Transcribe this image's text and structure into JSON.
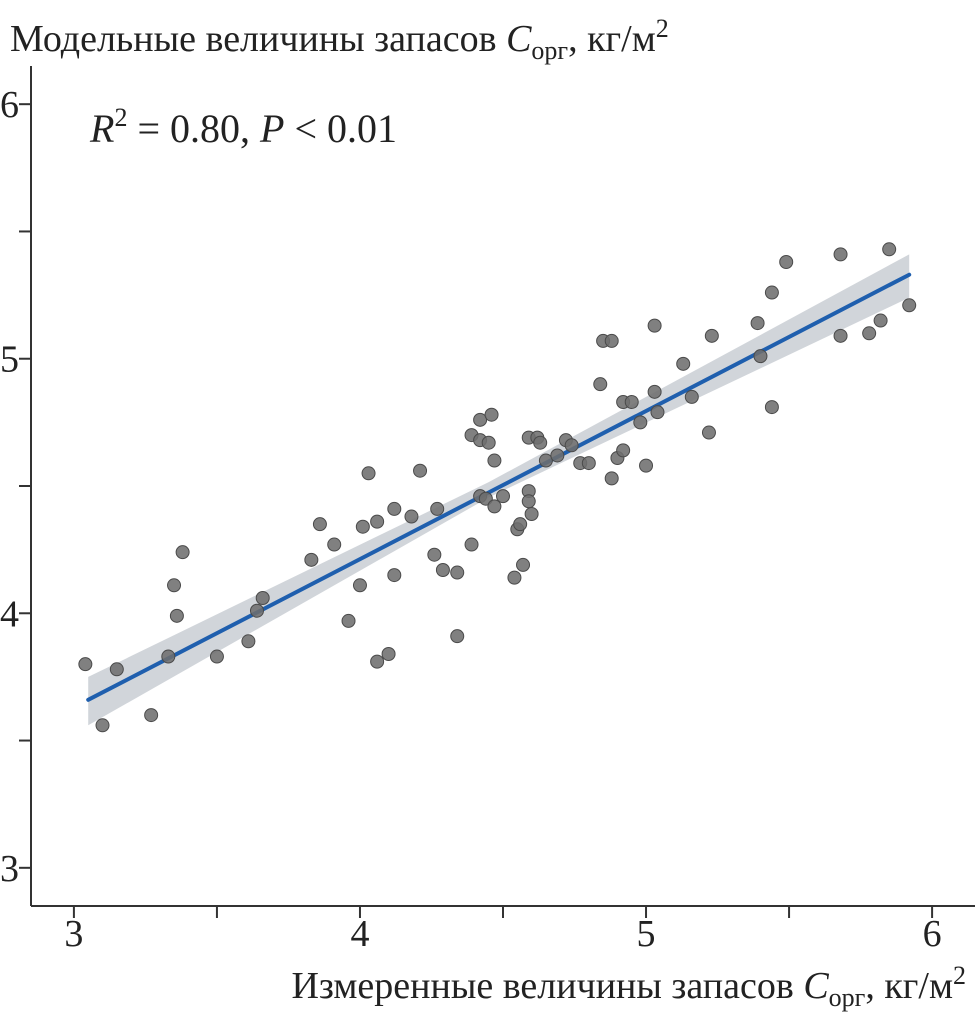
{
  "chart_data": {
    "type": "scatter",
    "ylabel": {
      "main": "Модельные величины запасов ",
      "var": "C",
      "sub": "орг",
      "unit": ", кг/м",
      "sup": "2"
    },
    "xlabel": {
      "main": "Измеренные величины запасов ",
      "var": "C",
      "sub": "орг",
      "unit": ", кг/м",
      "sup": "2"
    },
    "annotation": {
      "r_var": "R",
      "r_sup": "2",
      "r_value": " = 0.80, ",
      "p_var": "P",
      "p_value": " < 0.01"
    },
    "xlim": [
      2.85,
      6.15
    ],
    "ylim": [
      2.85,
      6.15
    ],
    "x_ticks": [
      3,
      3.5,
      4,
      4.5,
      5,
      5.5,
      6
    ],
    "x_tick_labels": [
      "3",
      "",
      "4",
      "",
      "5",
      "",
      "6"
    ],
    "y_ticks": [
      3,
      3.5,
      4,
      4.5,
      5,
      5.5,
      6
    ],
    "y_tick_labels": [
      "3",
      "",
      "4",
      "",
      "5",
      "",
      "6"
    ],
    "grid": false,
    "points": [
      [
        3.04,
        3.8
      ],
      [
        3.1,
        3.56
      ],
      [
        3.15,
        3.78
      ],
      [
        3.27,
        3.6
      ],
      [
        3.33,
        3.83
      ],
      [
        3.35,
        4.11
      ],
      [
        3.36,
        3.99
      ],
      [
        3.38,
        4.24
      ],
      [
        3.5,
        3.83
      ],
      [
        3.61,
        3.89
      ],
      [
        3.64,
        4.01
      ],
      [
        3.66,
        4.06
      ],
      [
        3.83,
        4.21
      ],
      [
        3.86,
        4.35
      ],
      [
        3.91,
        4.27
      ],
      [
        3.96,
        3.97
      ],
      [
        4.0,
        4.11
      ],
      [
        4.01,
        4.34
      ],
      [
        4.03,
        4.55
      ],
      [
        4.06,
        3.81
      ],
      [
        4.06,
        4.36
      ],
      [
        4.1,
        3.84
      ],
      [
        4.12,
        4.15
      ],
      [
        4.12,
        4.41
      ],
      [
        4.18,
        4.38
      ],
      [
        4.21,
        4.56
      ],
      [
        4.26,
        4.23
      ],
      [
        4.27,
        4.41
      ],
      [
        4.29,
        4.17
      ],
      [
        4.34,
        4.16
      ],
      [
        4.34,
        3.91
      ],
      [
        4.39,
        4.27
      ],
      [
        4.39,
        4.7
      ],
      [
        4.42,
        4.76
      ],
      [
        4.42,
        4.68
      ],
      [
        4.42,
        4.46
      ],
      [
        4.44,
        4.45
      ],
      [
        4.45,
        4.67
      ],
      [
        4.46,
        4.78
      ],
      [
        4.47,
        4.6
      ],
      [
        4.47,
        4.42
      ],
      [
        4.5,
        4.46
      ],
      [
        4.54,
        4.14
      ],
      [
        4.55,
        4.33
      ],
      [
        4.56,
        4.35
      ],
      [
        4.57,
        4.19
      ],
      [
        4.59,
        4.69
      ],
      [
        4.59,
        4.48
      ],
      [
        4.59,
        4.44
      ],
      [
        4.6,
        4.39
      ],
      [
        4.62,
        4.69
      ],
      [
        4.63,
        4.67
      ],
      [
        4.65,
        4.6
      ],
      [
        4.69,
        4.62
      ],
      [
        4.72,
        4.68
      ],
      [
        4.74,
        4.66
      ],
      [
        4.77,
        4.59
      ],
      [
        4.8,
        4.59
      ],
      [
        4.84,
        4.9
      ],
      [
        4.85,
        5.07
      ],
      [
        4.88,
        5.07
      ],
      [
        4.88,
        4.53
      ],
      [
        4.9,
        4.61
      ],
      [
        4.92,
        4.83
      ],
      [
        4.92,
        4.64
      ],
      [
        4.95,
        4.83
      ],
      [
        4.98,
        4.75
      ],
      [
        5.0,
        4.58
      ],
      [
        5.03,
        4.87
      ],
      [
        5.03,
        5.13
      ],
      [
        5.04,
        4.79
      ],
      [
        5.13,
        4.98
      ],
      [
        5.16,
        4.85
      ],
      [
        5.22,
        4.71
      ],
      [
        5.23,
        5.09
      ],
      [
        5.39,
        5.14
      ],
      [
        5.4,
        5.01
      ],
      [
        5.44,
        4.81
      ],
      [
        5.44,
        5.26
      ],
      [
        5.49,
        5.38
      ],
      [
        5.68,
        5.41
      ],
      [
        5.68,
        5.09
      ],
      [
        5.78,
        5.1
      ],
      [
        5.82,
        5.15
      ],
      [
        5.85,
        5.43
      ],
      [
        5.92,
        5.21
      ]
    ],
    "regression": {
      "x": [
        3.05,
        5.92
      ],
      "y": [
        3.66,
        5.33
      ]
    },
    "confidence_band": {
      "x": [
        3.05,
        4.45,
        5.92
      ],
      "upper": [
        3.75,
        4.515,
        5.41
      ],
      "lower": [
        3.56,
        4.455,
        5.24
      ]
    },
    "colors": {
      "point_fill": "#6e6e6e",
      "point_stroke": "#4a4a4a",
      "line": "#1f5fae",
      "band": "#c9ced4",
      "axis": "#333333",
      "text": "#222222"
    }
  }
}
